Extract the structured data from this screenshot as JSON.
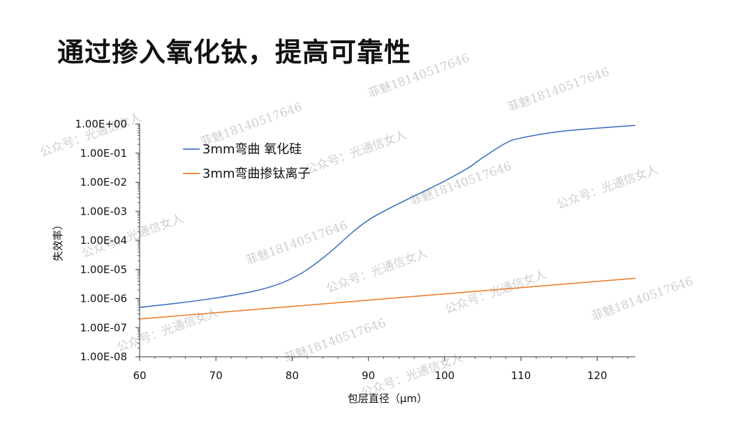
{
  "page_title": "通过掺入氧化钛，提高可靠性",
  "watermarks": [
    "公众号：光通信女人",
    "菲魅18140517646",
    "公众号：光通信女人",
    "菲魅18140517646",
    "公众号：光通信女人",
    "菲魅18140517646",
    "公众号：光通信女人",
    "菲魅18140517646",
    "公众号：光通信女人",
    "菲魅18140517646",
    "公众号：光通信女人",
    "菲魅18140517646",
    "公众号：光通信女人",
    "菲魅18140517646",
    "公众号：光通信女人"
  ],
  "colors": {
    "series1": "#4472c4",
    "series2": "#ed7d31",
    "axis": "#333333"
  },
  "chart_data": {
    "type": "line",
    "title": "",
    "xlabel": "包层直径（μm）",
    "ylabel": "失效率）",
    "xlim": [
      60,
      125
    ],
    "x_ticks": [
      60,
      70,
      80,
      90,
      100,
      110,
      120
    ],
    "x_tick_labels": [
      "60",
      "70",
      "80",
      "90",
      "100",
      "110",
      "120"
    ],
    "y_scale": "log",
    "ylim": [
      1e-08,
      1
    ],
    "y_ticks": [
      1,
      0.1,
      0.01,
      0.001,
      0.0001,
      1e-05,
      1e-06,
      1e-07,
      1e-08
    ],
    "y_tick_labels": [
      "1.00E+00",
      "1.00E-01",
      "1.00E-02",
      "1.00E-03",
      "1.00E-04",
      "1.00E-05",
      "1.00E-06",
      "1.00E-07",
      "1.00E-08"
    ],
    "legend_position": "top-left",
    "series": [
      {
        "name": "3mm弯曲 氧化硅",
        "x": [
          60,
          65,
          70,
          75,
          78,
          80,
          82,
          85,
          88,
          90,
          92,
          95,
          98,
          100,
          103,
          105,
          108,
          110,
          115,
          120,
          125
        ],
        "y": [
          5e-07,
          7e-07,
          1.05e-06,
          1.8e-06,
          3e-06,
          5e-06,
          1e-05,
          4e-05,
          0.0002,
          0.0005,
          0.001,
          0.0025,
          0.006,
          0.011,
          0.03,
          0.07,
          0.22,
          0.33,
          0.55,
          0.72,
          0.9
        ]
      },
      {
        "name": "3mm弯曲掺钛离子",
        "x": [
          60,
          125
        ],
        "y": [
          2e-07,
          5e-06
        ]
      }
    ]
  }
}
